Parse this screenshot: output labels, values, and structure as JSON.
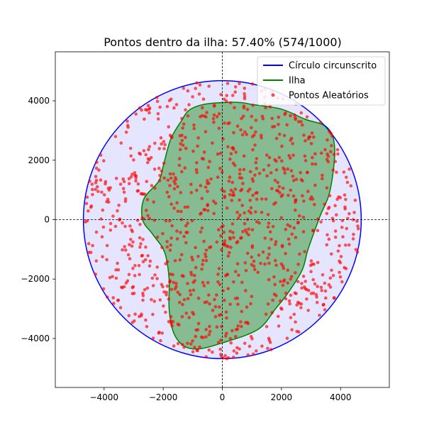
{
  "chart_data": {
    "type": "scatter",
    "title": "Pontos dentro da ilha: 57.40% (574/1000)",
    "xlabel": "",
    "ylabel": "",
    "xlim": [
      -5650,
      5650
    ],
    "ylim": [
      -5650,
      5650
    ],
    "xticks": [
      -4000,
      -2000,
      0,
      2000,
      4000
    ],
    "yticks": [
      -4000,
      -2000,
      0,
      2000,
      4000
    ],
    "xtick_labels": [
      "−4000",
      "−2000",
      "0",
      "2000",
      "4000"
    ],
    "ytick_labels": [
      "−4000",
      "−2000",
      "0",
      "2000",
      "4000"
    ],
    "grid": false,
    "reference_lines": "dashed black lines at x = 0 and y = 0",
    "legend_position": "top-right",
    "legend": [
      {
        "label": "Círculo circunscrito",
        "kind": "line",
        "color": "#0000ff"
      },
      {
        "label": "Ilha",
        "kind": "line",
        "color": "#008000"
      },
      {
        "label": "Pontos Aleatórios",
        "kind": "marker",
        "color": "#ff0000"
      }
    ],
    "circle": {
      "name": "Círculo circunscrito",
      "center": [
        0,
        0
      ],
      "radius": 4700,
      "edge_color": "#0000ff",
      "fill_color": "#e5e5ff"
    },
    "island": {
      "name": "Ilha",
      "edge_color": "#008000",
      "fill_color": "#87bb91",
      "polygon": [
        [
          1000,
          3880
        ],
        [
          2000,
          3720
        ],
        [
          2800,
          3380
        ],
        [
          3550,
          3100
        ],
        [
          3800,
          2400
        ],
        [
          3650,
          1000
        ],
        [
          3300,
          100
        ],
        [
          2900,
          -1000
        ],
        [
          2700,
          -1700
        ],
        [
          2200,
          -2500
        ],
        [
          1800,
          -3000
        ],
        [
          1200,
          -3700
        ],
        [
          0,
          -4150
        ],
        [
          -800,
          -4350
        ],
        [
          -1300,
          -4250
        ],
        [
          -1650,
          -3800
        ],
        [
          -1800,
          -3000
        ],
        [
          -1800,
          -2000
        ],
        [
          -1950,
          -1100
        ],
        [
          -2350,
          -500
        ],
        [
          -2700,
          0
        ],
        [
          -2650,
          700
        ],
        [
          -2150,
          1300
        ],
        [
          -2000,
          1800
        ],
        [
          -1750,
          2700
        ],
        [
          -1400,
          3300
        ],
        [
          -1100,
          3700
        ],
        [
          -500,
          3900
        ],
        [
          500,
          3950
        ]
      ]
    },
    "points": {
      "name": "Pontos Aleatórios",
      "color": "#ff0000",
      "total": 1000,
      "inside": 574,
      "percentage": 57.4
    }
  }
}
